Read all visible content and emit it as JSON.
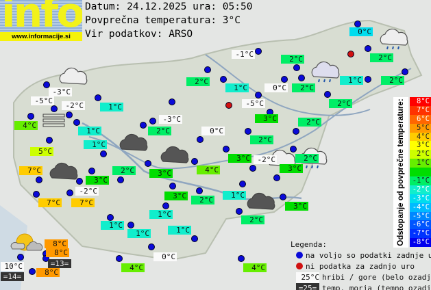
{
  "logo": {
    "text": "info",
    "url": "www.informacije.si"
  },
  "header": {
    "date_line": "Datum: 24.12.2025 ura: 05:50",
    "avg_line": "Povprečna temperatura: 3°C",
    "source_line": "Vir podatkov: ARSO"
  },
  "average_temp": 3,
  "scale": {
    "title": "Odstopanje od povprečne temperature:",
    "steps": [
      {
        "label": "8°C",
        "color": "#ff0000"
      },
      {
        "label": "7°C",
        "color": "#ff3300"
      },
      {
        "label": "6°C",
        "color": "#ff6600"
      },
      {
        "label": "5°C",
        "color": "#ff9900"
      },
      {
        "label": "4°C",
        "color": "#ffcc00"
      },
      {
        "label": "3°C",
        "color": "#ffff00"
      },
      {
        "label": "2°C",
        "color": "#ccff00"
      },
      {
        "label": "1°C",
        "color": "#66ee00"
      },
      {
        "label": "",
        "color": "#00dd00"
      },
      {
        "label": "-1°C",
        "color": "#00ee66"
      },
      {
        "label": "-2°C",
        "color": "#11eecc"
      },
      {
        "label": "-3°C",
        "color": "#00ddee"
      },
      {
        "label": "-4°C",
        "color": "#00bbff"
      },
      {
        "label": "-5°C",
        "color": "#0088ff"
      },
      {
        "label": "-6°C",
        "color": "#0055ff"
      },
      {
        "label": "-7°C",
        "color": "#0033ff"
      },
      {
        "label": "-8°C",
        "color": "#0000ee"
      }
    ]
  },
  "stations": [
    {
      "t": "0°C",
      "type": "valley"
    },
    {
      "t": "-1°C",
      "type": "hill"
    },
    {
      "t": "2°C",
      "type": "valley"
    },
    {
      "t": "2°C",
      "type": "valley"
    },
    {
      "t": "2°C",
      "type": "valley"
    },
    {
      "t": "1°C",
      "type": "valley"
    },
    {
      "t": "0°C",
      "type": "hill"
    },
    {
      "t": "2°C",
      "type": "valley"
    },
    {
      "t": "1°C",
      "type": "valley"
    },
    {
      "t": "2°C",
      "type": "valley"
    },
    {
      "t": "-3°C",
      "type": "hill"
    },
    {
      "t": "-5°C",
      "type": "hill"
    },
    {
      "t": "-2°C",
      "type": "hill"
    },
    {
      "t": "1°C",
      "type": "valley"
    },
    {
      "t": "-5°C",
      "type": "hill"
    },
    {
      "t": "2°C",
      "type": "valley"
    },
    {
      "t": "3°C",
      "type": "valley"
    },
    {
      "t": "2°C",
      "type": "valley"
    },
    {
      "t": "4°C",
      "type": "valley"
    },
    {
      "t": "-3°C",
      "type": "hill"
    },
    {
      "t": "1°C",
      "type": "valley"
    },
    {
      "t": "2°C",
      "type": "valley"
    },
    {
      "t": "0°C",
      "type": "hill"
    },
    {
      "t": "1°C",
      "type": "valley"
    },
    {
      "t": "2°C",
      "type": "valley"
    },
    {
      "t": "5°C",
      "type": "valley"
    },
    {
      "t": "3°C",
      "type": "valley"
    },
    {
      "t": "-2°C",
      "type": "hill"
    },
    {
      "t": "2°C",
      "type": "valley"
    },
    {
      "t": "7°C",
      "type": "valley"
    },
    {
      "t": "2°C",
      "type": "valley"
    },
    {
      "t": "3°C",
      "type": "valley"
    },
    {
      "t": "4°C",
      "type": "valley"
    },
    {
      "t": "3°C",
      "type": "valley"
    },
    {
      "t": "3°C",
      "type": "valley"
    },
    {
      "t": "-2°C",
      "type": "hill"
    },
    {
      "t": "3°C",
      "type": "valley"
    },
    {
      "t": "2°C",
      "type": "valley"
    },
    {
      "t": "1°C",
      "type": "valley"
    },
    {
      "t": "7°C",
      "type": "valley"
    },
    {
      "t": "7°C",
      "type": "valley"
    },
    {
      "t": "2°C",
      "type": "valley"
    },
    {
      "t": "3°C",
      "type": "valley"
    },
    {
      "t": "1°C",
      "type": "valley"
    },
    {
      "t": "1°C",
      "type": "valley"
    },
    {
      "t": "1°C",
      "type": "valley"
    },
    {
      "t": "1°C",
      "type": "valley"
    },
    {
      "t": "8°C",
      "type": "valley"
    },
    {
      "t": "8°C",
      "type": "valley"
    },
    {
      "t": "=13=",
      "type": "sea"
    },
    {
      "t": "0°C",
      "type": "hill"
    },
    {
      "t": "10°C",
      "type": "hill"
    },
    {
      "t": "=14=",
      "type": "sea"
    },
    {
      "t": "8°C",
      "type": "valley"
    },
    {
      "t": "4°C",
      "type": "valley"
    },
    {
      "t": "4°C",
      "type": "valley"
    }
  ],
  "legend": {
    "title": "Legenda:",
    "blue_dot": {
      "text": "na voljo so podatki zadnje ure",
      "color": "#0a0ad8"
    },
    "red_dot": {
      "text": "ni podatka za zadnjo uro",
      "color": "#d01010"
    },
    "hill": {
      "sample": "25°C",
      "text": "hribi / gore (belo ozadje)"
    },
    "sea": {
      "sample": "=25=",
      "text": "temp. morja (temno ozadje)"
    }
  }
}
